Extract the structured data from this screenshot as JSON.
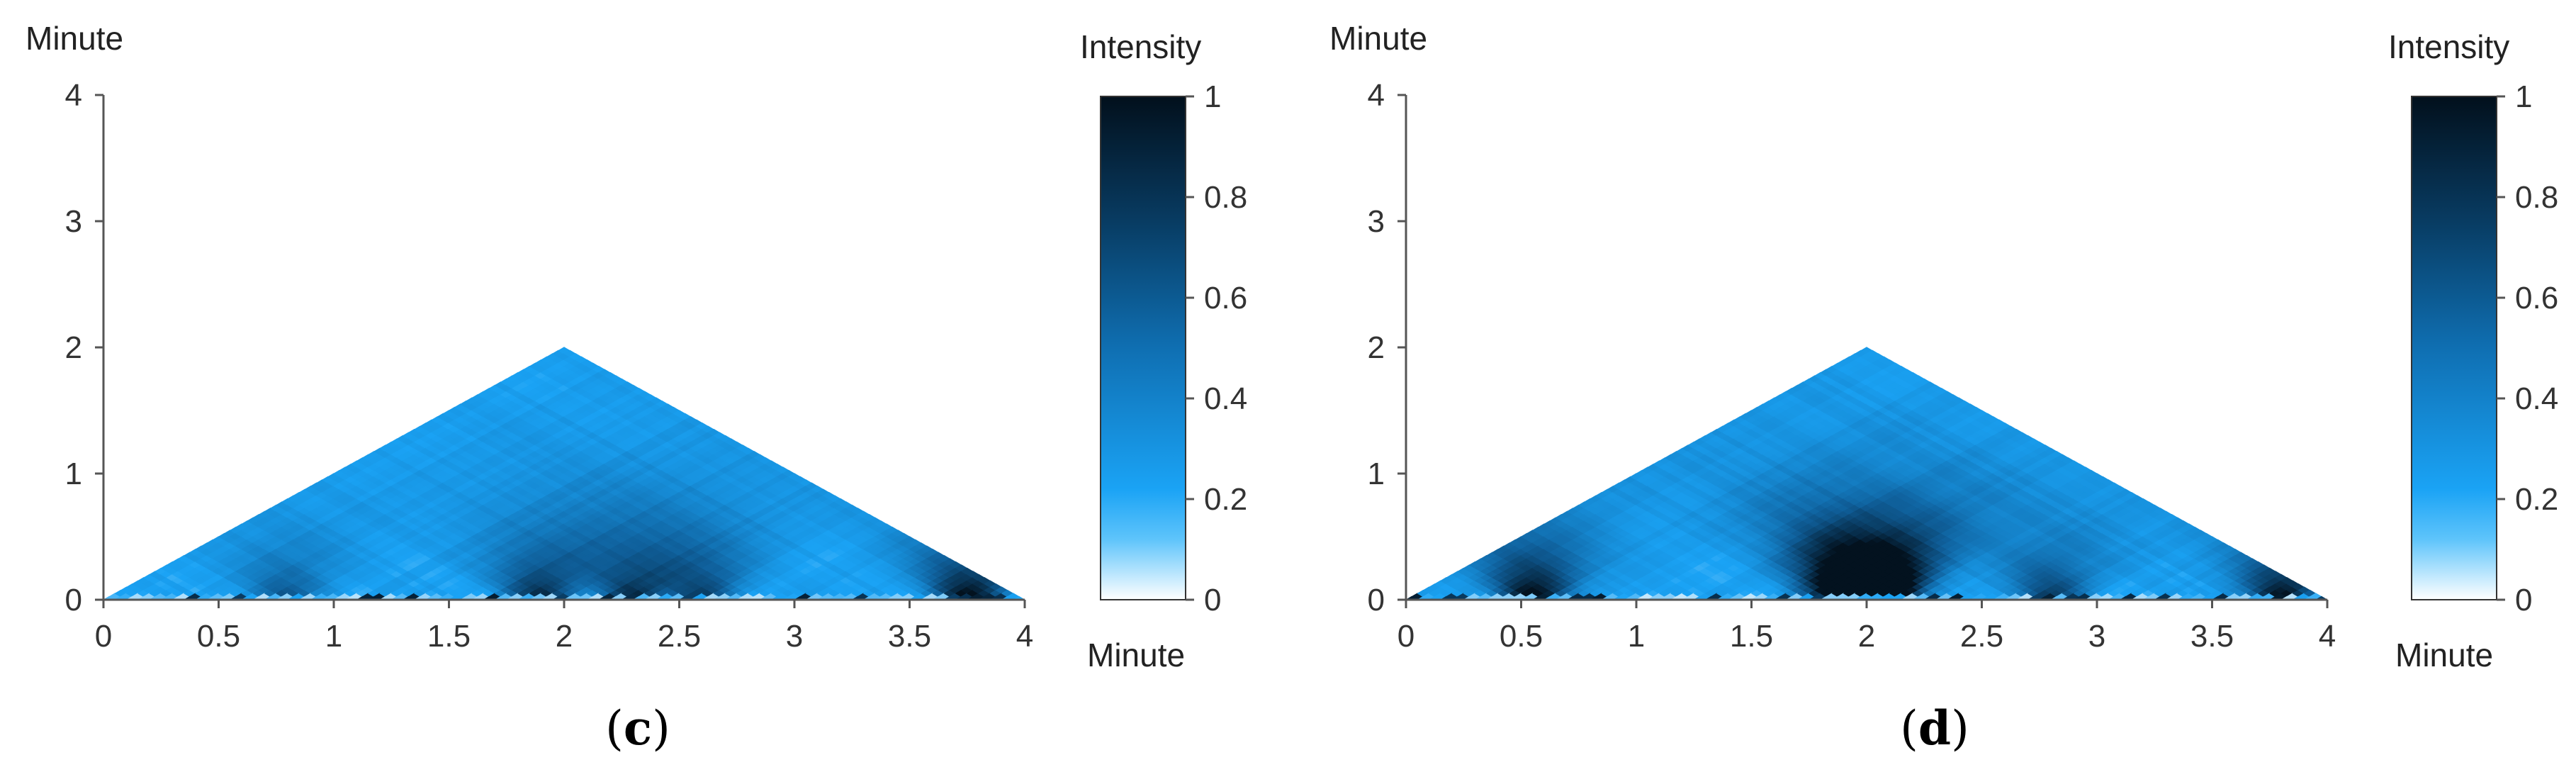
{
  "chart_data": [
    {
      "type": "heatmap",
      "caption_letter": "c",
      "x": [
        0,
        0.5,
        1,
        1.5,
        2,
        2.5,
        3,
        3.5,
        4
      ],
      "y": [
        0,
        1,
        2,
        3,
        4
      ],
      "xlim": [
        0,
        4
      ],
      "ylim": [
        0,
        4
      ],
      "ylabel": "Minute",
      "colorbar": {
        "title": "Intensity",
        "label": "Minute",
        "ticks": [
          0,
          0.2,
          0.4,
          0.6,
          0.8,
          1
        ],
        "range": [
          0,
          1
        ]
      },
      "colormap": [
        "#ffffff",
        "#1aa3f5",
        "#0f5f9a",
        "#03121f"
      ],
      "hotspots": [
        {
          "x": 2.3,
          "y": 0.05,
          "v": 0.85
        },
        {
          "x": 2.6,
          "y": 0.05,
          "v": 0.75
        },
        {
          "x": 3.75,
          "y": 0.08,
          "v": 0.95
        },
        {
          "x": 0.8,
          "y": 0.05,
          "v": 0.6
        },
        {
          "x": 1.9,
          "y": 0.5,
          "v": 0.4
        }
      ]
    },
    {
      "type": "heatmap",
      "caption_letter": "d",
      "x": [
        0,
        0.5,
        1,
        1.5,
        2,
        2.5,
        3,
        3.5,
        4
      ],
      "y": [
        0,
        1,
        2,
        3,
        4
      ],
      "xlim": [
        0,
        4
      ],
      "ylim": [
        0,
        4
      ],
      "ylabel": "Minute",
      "colorbar": {
        "title": "Intensity",
        "label": "Minute",
        "ticks": [
          0,
          0.2,
          0.4,
          0.6,
          0.8,
          1
        ],
        "range": [
          0,
          1
        ]
      },
      "colormap": [
        "#ffffff",
        "#1aa3f5",
        "#0f5f9a",
        "#03121f"
      ],
      "hotspots": [
        {
          "x": 0.55,
          "y": 0.12,
          "v": 0.95
        },
        {
          "x": 1.85,
          "y": 0.08,
          "v": 0.85
        },
        {
          "x": 2.1,
          "y": 0.12,
          "v": 0.95
        },
        {
          "x": 2.8,
          "y": 0.08,
          "v": 0.7
        },
        {
          "x": 3.8,
          "y": 0.1,
          "v": 0.9
        },
        {
          "x": 2.0,
          "y": 0.6,
          "v": 0.45
        }
      ]
    }
  ]
}
